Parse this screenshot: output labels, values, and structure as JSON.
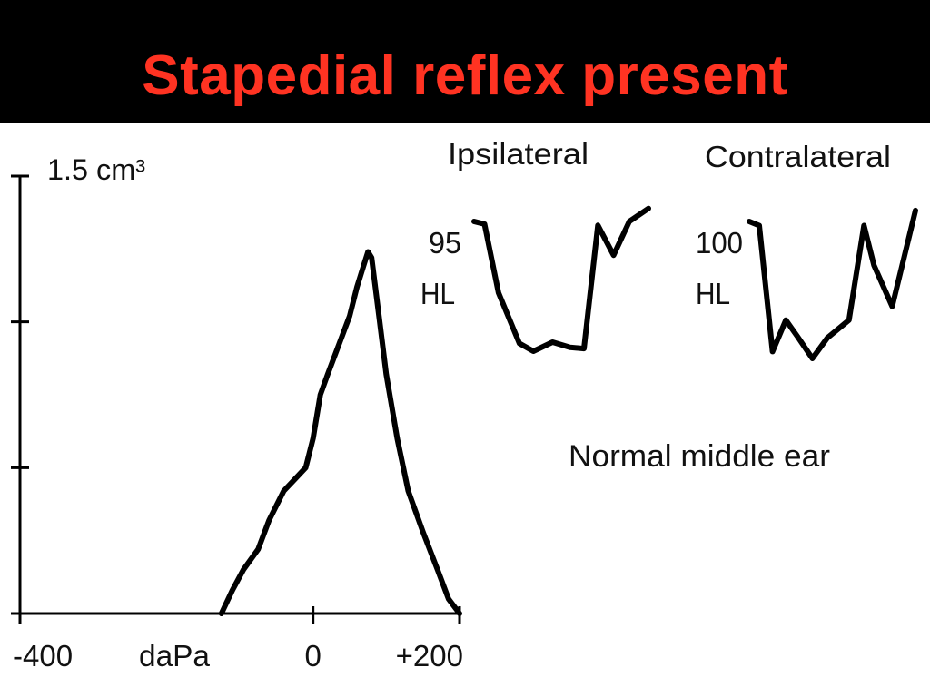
{
  "title": "Stapedial reflex present",
  "colors": {
    "title": "#ff3322",
    "background": "#000000",
    "panel": "#ffffff",
    "ink": "#000000"
  },
  "chart_data": [
    {
      "type": "line",
      "name": "tympanogram",
      "ylabel": "1.5 cm³",
      "xlabel": "daPa",
      "x_ticks": [
        "-400",
        "0",
        "+200"
      ],
      "xlim": [
        -400,
        200
      ],
      "ylim": [
        0,
        1.5
      ],
      "grid": false,
      "series": [
        {
          "x": [
            -125,
            -110,
            -95,
            -75,
            -60,
            -40,
            -25,
            -10,
            0,
            10,
            20,
            35,
            50,
            60,
            70,
            75,
            80,
            90,
            100,
            115,
            130,
            150,
            170,
            185,
            200
          ],
          "y": [
            0.0,
            0.08,
            0.15,
            0.22,
            0.32,
            0.42,
            0.46,
            0.5,
            0.6,
            0.75,
            0.82,
            0.92,
            1.02,
            1.12,
            1.2,
            1.24,
            1.22,
            1.02,
            0.82,
            0.6,
            0.42,
            0.28,
            0.15,
            0.05,
            0.0
          ]
        }
      ]
    },
    {
      "type": "line",
      "name": "ipsilateral-reflex",
      "title": "Ipsilateral",
      "level_label": "95",
      "unit_label": "HL",
      "series": [
        {
          "x": [
            0,
            0.06,
            0.14,
            0.26,
            0.34,
            0.45,
            0.55,
            0.63,
            0.71,
            0.8,
            0.89,
            1.0
          ],
          "y": [
            1.0,
            0.98,
            0.45,
            0.06,
            0.0,
            0.07,
            0.03,
            0.02,
            0.97,
            0.74,
            1.0,
            1.1
          ]
        }
      ]
    },
    {
      "type": "line",
      "name": "contralateral-reflex",
      "title": "Contralateral",
      "level_label": "100",
      "unit_label": "HL",
      "series": [
        {
          "x": [
            0,
            0.06,
            0.14,
            0.22,
            0.29,
            0.38,
            0.47,
            0.6,
            0.69,
            0.75,
            0.86,
            1.0
          ],
          "y": [
            1.0,
            0.97,
            0.05,
            0.28,
            0.16,
            0.0,
            0.15,
            0.28,
            0.97,
            0.68,
            0.38,
            1.08
          ]
        }
      ]
    }
  ],
  "annotations": {
    "middle_ear": "Normal middle ear"
  }
}
